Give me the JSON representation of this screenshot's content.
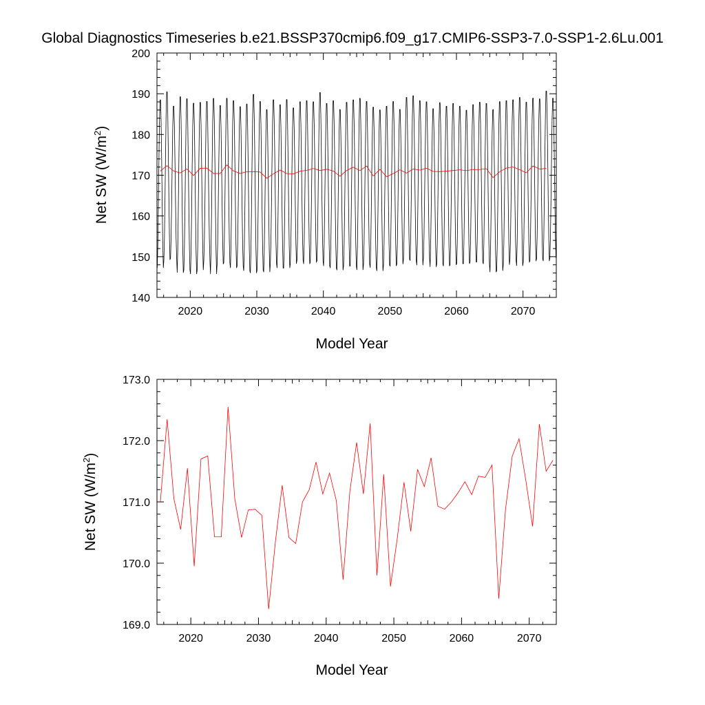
{
  "title": "Global Diagnostics Timeseries b.e21.BSSP370cmip6.f09_g17.CMIP6-SSP3-7.0-SSP1-2.6Lu.001",
  "chart_data": [
    {
      "type": "line",
      "xlabel": "Model Year",
      "ylabel_main": "Net SW (W/m",
      "ylabel_sup": "2",
      "ylabel_close": ")",
      "xlim": [
        2015,
        2075
      ],
      "ylim": [
        140,
        200
      ],
      "x_ticks": [
        2020,
        2030,
        2040,
        2050,
        2060,
        2070
      ],
      "x_tick_labels": [
        "2020",
        "2030",
        "2040",
        "2050",
        "2060",
        "2070"
      ],
      "y_ticks": [
        140,
        150,
        160,
        170,
        180,
        190,
        200
      ],
      "y_tick_labels": [
        "140",
        "150",
        "160",
        "170",
        "180",
        "190",
        "200"
      ],
      "grid": false,
      "series": [
        {
          "color": "#000000",
          "kind": "monthly",
          "x_start": 2015.04,
          "x_step": 0.08333,
          "annual_max": [
            189.2,
            191.2,
            187.6,
            190.0,
            189.5,
            188.4,
            188.6,
            188.8,
            189.6,
            187.8,
            189.6,
            189.0,
            187.5,
            188.2,
            190.6,
            188.8,
            186.8,
            189.2,
            188.0,
            189.3,
            187.2,
            188.7,
            189.0,
            188.7,
            191.0,
            188.3,
            189.0,
            186.8,
            188.6,
            189.2,
            189.6,
            188.8,
            187.4,
            186.7,
            187.6,
            188.8,
            186.8,
            189.8,
            190.2,
            189.0,
            188.7,
            187.0,
            188.5,
            187.6,
            188.3,
            187.6,
            186.6,
            188.0,
            188.6,
            188.3,
            186.8,
            188.8,
            189.0,
            189.2,
            189.8,
            188.6,
            189.6,
            189.4,
            191.4,
            189.6
          ],
          "annual_min": [
            146.5,
            148.5,
            149.0,
            145.3,
            146.0,
            145.0,
            146.0,
            148.4,
            145.0,
            147.5,
            147.8,
            146.5,
            147.0,
            145.8,
            145.2,
            146.0,
            145.5,
            147.8,
            146.5,
            146.5,
            147.6,
            148.5,
            147.5,
            148.0,
            148.2,
            147.0,
            146.5,
            146.0,
            147.0,
            147.0,
            146.0,
            147.5,
            146.6,
            145.8,
            147.2,
            147.0,
            147.5,
            148.6,
            148.4,
            147.2,
            149.0,
            146.8,
            147.5,
            147.0,
            147.3,
            147.6,
            147.6,
            148.0,
            148.0,
            147.5,
            145.5,
            145.8,
            147.3,
            148.5,
            147.0,
            148.0,
            148.2,
            148.8,
            148.2,
            149.0
          ]
        },
        {
          "color": "#ff0000",
          "kind": "annual",
          "x": [
            2015.5,
            2016.5,
            2017.5,
            2018.5,
            2019.5,
            2020.5,
            2021.5,
            2022.5,
            2023.5,
            2024.5,
            2025.5,
            2026.5,
            2027.5,
            2028.5,
            2029.5,
            2030.5,
            2031.5,
            2032.5,
            2033.5,
            2034.5,
            2035.5,
            2036.5,
            2037.5,
            2038.5,
            2039.5,
            2040.5,
            2041.5,
            2042.5,
            2043.5,
            2044.5,
            2045.5,
            2046.5,
            2047.5,
            2048.5,
            2049.5,
            2050.5,
            2051.5,
            2052.5,
            2053.5,
            2054.5,
            2055.5,
            2056.5,
            2057.5,
            2058.5,
            2059.5,
            2060.5,
            2061.5,
            2062.5,
            2063.5,
            2064.5,
            2065.5,
            2066.5,
            2067.5,
            2068.5,
            2069.5,
            2070.5,
            2071.5,
            2072.5,
            2073.5
          ],
          "values": [
            171.0,
            172.35,
            171.05,
            170.55,
            171.55,
            169.95,
            171.7,
            171.75,
            170.43,
            170.43,
            172.55,
            171.05,
            170.42,
            170.87,
            170.88,
            170.78,
            169.25,
            170.35,
            171.27,
            170.42,
            170.32,
            171.0,
            171.2,
            171.65,
            171.13,
            171.47,
            171.02,
            169.73,
            171.17,
            171.97,
            171.13,
            172.28,
            169.8,
            171.45,
            169.62,
            170.4,
            171.32,
            170.52,
            171.53,
            171.25,
            171.72,
            170.93,
            170.88,
            171.0,
            171.15,
            171.33,
            171.12,
            171.42,
            171.4,
            171.6,
            169.42,
            170.88,
            171.75,
            172.03,
            171.35,
            170.6,
            172.27,
            171.5,
            171.68
          ]
        }
      ]
    },
    {
      "type": "line",
      "xlabel": "Model Year",
      "ylabel_main": "Net SW (W/m",
      "ylabel_sup": "2",
      "ylabel_close": ")",
      "xlim": [
        2015,
        2074
      ],
      "ylim": [
        169.0,
        173.0
      ],
      "x_ticks": [
        2020,
        2030,
        2040,
        2050,
        2060,
        2070
      ],
      "x_tick_labels": [
        "2020",
        "2030",
        "2040",
        "2050",
        "2060",
        "2070"
      ],
      "y_ticks": [
        169,
        170,
        171,
        172,
        173
      ],
      "y_tick_labels": [
        "169.0",
        "170.0",
        "171.0",
        "172.0",
        "173.0"
      ],
      "grid": false,
      "series": [
        {
          "color": "#ff0000",
          "kind": "annual",
          "x": [
            2015.5,
            2016.5,
            2017.5,
            2018.5,
            2019.5,
            2020.5,
            2021.5,
            2022.5,
            2023.5,
            2024.5,
            2025.5,
            2026.5,
            2027.5,
            2028.5,
            2029.5,
            2030.5,
            2031.5,
            2032.5,
            2033.5,
            2034.5,
            2035.5,
            2036.5,
            2037.5,
            2038.5,
            2039.5,
            2040.5,
            2041.5,
            2042.5,
            2043.5,
            2044.5,
            2045.5,
            2046.5,
            2047.5,
            2048.5,
            2049.5,
            2050.5,
            2051.5,
            2052.5,
            2053.5,
            2054.5,
            2055.5,
            2056.5,
            2057.5,
            2058.5,
            2059.5,
            2060.5,
            2061.5,
            2062.5,
            2063.5,
            2064.5,
            2065.5,
            2066.5,
            2067.5,
            2068.5,
            2069.5,
            2070.5,
            2071.5,
            2072.5,
            2073.5
          ],
          "values": [
            171.0,
            172.35,
            171.05,
            170.55,
            171.55,
            169.95,
            171.7,
            171.75,
            170.43,
            170.43,
            172.55,
            171.05,
            170.42,
            170.87,
            170.88,
            170.78,
            169.25,
            170.35,
            171.27,
            170.42,
            170.32,
            171.0,
            171.2,
            171.65,
            171.13,
            171.47,
            171.02,
            169.73,
            171.17,
            171.97,
            171.13,
            172.28,
            169.8,
            171.45,
            169.62,
            170.4,
            171.32,
            170.52,
            171.53,
            171.25,
            171.72,
            170.93,
            170.88,
            171.0,
            171.15,
            171.33,
            171.12,
            171.42,
            171.4,
            171.6,
            169.42,
            170.88,
            171.75,
            172.03,
            171.35,
            170.6,
            172.27,
            171.5,
            171.68
          ]
        }
      ]
    }
  ]
}
